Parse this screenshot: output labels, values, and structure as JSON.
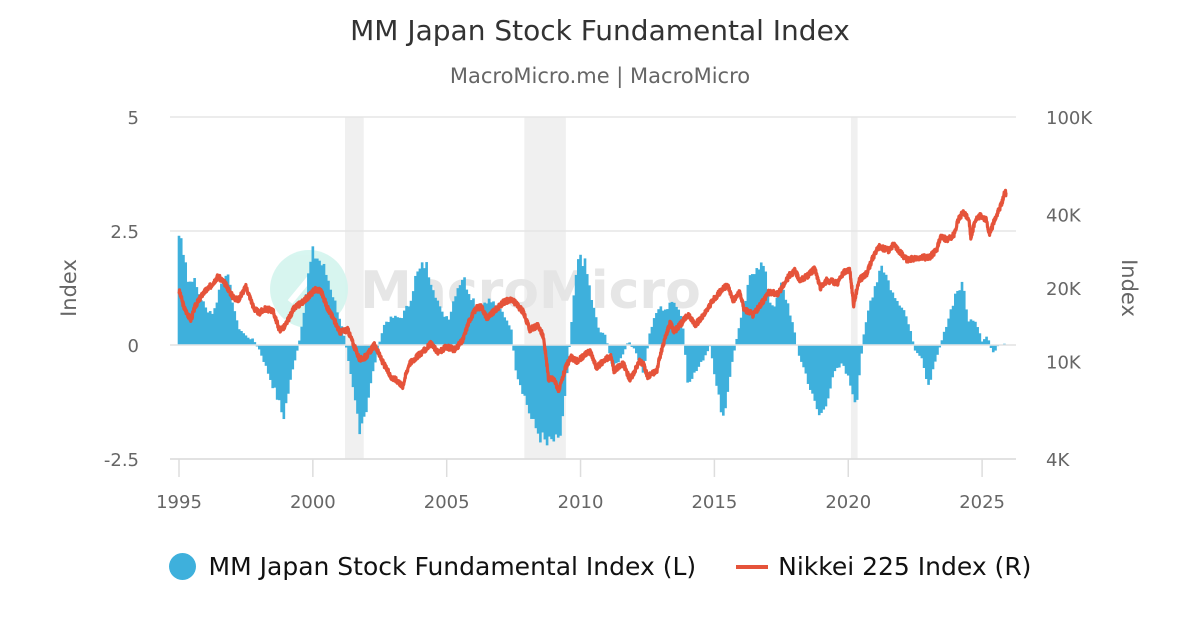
{
  "chart_data": {
    "type": "bar+line",
    "title": "MM Japan Stock Fundamental Index",
    "subtitle": "MacroMicro.me | MacroMicro",
    "watermark": "MacroMicro",
    "x_axis": {
      "range": [
        1994.95,
        2026.2
      ],
      "ticks": [
        1995,
        2000,
        2005,
        2010,
        2015,
        2020,
        2025
      ],
      "tick_labels": [
        "1995",
        "2000",
        "2005",
        "2010",
        "2015",
        "2020",
        "2025"
      ]
    },
    "y_left": {
      "label": "Index",
      "range": [
        -2.5,
        5
      ],
      "ticks": [
        -2.5,
        0,
        2.5,
        5
      ],
      "tick_labels": [
        "-2.5",
        "0",
        "2.5",
        "5"
      ]
    },
    "y_right": {
      "label": "Index",
      "scale": "log",
      "range": [
        4000,
        100000
      ],
      "ticks": [
        4000,
        10000,
        20000,
        40000,
        100000
      ],
      "tick_labels": [
        "4K",
        "10K",
        "20K",
        "40K",
        "100K"
      ]
    },
    "grid": true,
    "legend_position": "bottom-center",
    "recession_bands": [
      [
        2001.2,
        2001.9
      ],
      [
        2007.9,
        2009.45
      ],
      [
        2020.1,
        2020.35
      ]
    ],
    "series": [
      {
        "name": "MM Japan Stock Fundamental Index (L)",
        "type": "bar",
        "axis": "left",
        "color": "#3eb0dc",
        "frequency": "monthly (interpolated anchors)",
        "points": [
          [
            1995.0,
            2.4
          ],
          [
            1995.1,
            2.3
          ],
          [
            1995.25,
            1.9
          ],
          [
            1995.35,
            1.3
          ],
          [
            1995.5,
            1.5
          ],
          [
            1995.7,
            1.2
          ],
          [
            1995.85,
            1.0
          ],
          [
            1996.0,
            0.8
          ],
          [
            1996.3,
            0.7
          ],
          [
            1996.5,
            1.2
          ],
          [
            1996.75,
            1.65
          ],
          [
            1997.0,
            1.0
          ],
          [
            1997.2,
            0.4
          ],
          [
            1997.5,
            0.2
          ],
          [
            1997.8,
            0.1
          ],
          [
            1998.0,
            -0.1
          ],
          [
            1998.2,
            -0.4
          ],
          [
            1998.45,
            -0.8
          ],
          [
            1998.7,
            -1.2
          ],
          [
            1998.9,
            -1.6
          ],
          [
            1999.1,
            -1.0
          ],
          [
            1999.3,
            -0.4
          ],
          [
            1999.5,
            0.1
          ],
          [
            1999.7,
            0.9
          ],
          [
            1999.85,
            1.6
          ],
          [
            2000.0,
            2.0
          ],
          [
            2000.2,
            1.9
          ],
          [
            2000.4,
            1.7
          ],
          [
            2000.6,
            1.4
          ],
          [
            2000.8,
            1.0
          ],
          [
            2001.0,
            0.6
          ],
          [
            2001.2,
            0.1
          ],
          [
            2001.45,
            -0.8
          ],
          [
            2001.75,
            -1.8
          ],
          [
            2002.0,
            -1.4
          ],
          [
            2002.25,
            -0.6
          ],
          [
            2002.5,
            0.1
          ],
          [
            2002.7,
            0.5
          ],
          [
            2003.0,
            0.6
          ],
          [
            2003.3,
            0.6
          ],
          [
            2003.6,
            0.9
          ],
          [
            2003.85,
            1.5
          ],
          [
            2004.2,
            1.8
          ],
          [
            2004.5,
            1.3
          ],
          [
            2004.8,
            0.7
          ],
          [
            2005.1,
            0.6
          ],
          [
            2005.35,
            1.2
          ],
          [
            2005.6,
            1.5
          ],
          [
            2005.9,
            1.1
          ],
          [
            2006.2,
            0.8
          ],
          [
            2006.5,
            1.0
          ],
          [
            2006.8,
            0.9
          ],
          [
            2007.1,
            0.7
          ],
          [
            2007.4,
            0.4
          ],
          [
            2007.6,
            -0.6
          ],
          [
            2007.9,
            -1.1
          ],
          [
            2008.2,
            -1.7
          ],
          [
            2008.5,
            -2.0
          ],
          [
            2008.75,
            -2.2
          ],
          [
            2009.0,
            -2.1
          ],
          [
            2009.2,
            -2.2
          ],
          [
            2009.45,
            -1.0
          ],
          [
            2009.65,
            0.4
          ],
          [
            2009.85,
            1.6
          ],
          [
            2010.0,
            2.0
          ],
          [
            2010.2,
            1.7
          ],
          [
            2010.45,
            0.9
          ],
          [
            2010.7,
            0.3
          ],
          [
            2010.95,
            0.2
          ],
          [
            2011.2,
            -0.5
          ],
          [
            2011.5,
            -0.3
          ],
          [
            2011.8,
            0.1
          ],
          [
            2012.1,
            -0.2
          ],
          [
            2012.35,
            -0.6
          ],
          [
            2012.6,
            0.3
          ],
          [
            2012.9,
            0.8
          ],
          [
            2013.25,
            0.8
          ],
          [
            2013.5,
            1.0
          ],
          [
            2013.8,
            0.6
          ],
          [
            2014.0,
            -0.8
          ],
          [
            2014.3,
            -0.6
          ],
          [
            2014.6,
            -0.3
          ],
          [
            2014.85,
            0.0
          ],
          [
            2015.1,
            -1.0
          ],
          [
            2015.35,
            -1.6
          ],
          [
            2015.6,
            -0.6
          ],
          [
            2015.85,
            0.2
          ],
          [
            2016.1,
            0.8
          ],
          [
            2016.35,
            1.5
          ],
          [
            2016.6,
            1.8
          ],
          [
            2016.85,
            1.7
          ],
          [
            2017.1,
            0.9
          ],
          [
            2017.3,
            0.9
          ],
          [
            2017.5,
            1.3
          ],
          [
            2017.75,
            0.9
          ],
          [
            2017.95,
            0.4
          ],
          [
            2018.15,
            -0.2
          ],
          [
            2018.4,
            -0.6
          ],
          [
            2018.7,
            -1.2
          ],
          [
            2018.95,
            -1.6
          ],
          [
            2019.2,
            -1.2
          ],
          [
            2019.5,
            -0.6
          ],
          [
            2019.8,
            -0.4
          ],
          [
            2020.05,
            -0.8
          ],
          [
            2020.3,
            -1.3
          ],
          [
            2020.55,
            0.1
          ],
          [
            2020.8,
            0.9
          ],
          [
            2021.0,
            1.3
          ],
          [
            2021.25,
            1.8
          ],
          [
            2021.5,
            1.4
          ],
          [
            2021.75,
            1.0
          ],
          [
            2022.0,
            0.9
          ],
          [
            2022.25,
            0.5
          ],
          [
            2022.5,
            -0.1
          ],
          [
            2022.75,
            -0.3
          ],
          [
            2022.95,
            -0.9
          ],
          [
            2023.15,
            -0.6
          ],
          [
            2023.4,
            -0.1
          ],
          [
            2023.6,
            0.3
          ],
          [
            2023.85,
            0.8
          ],
          [
            2024.05,
            1.2
          ],
          [
            2024.3,
            1.3
          ],
          [
            2024.5,
            0.5
          ],
          [
            2024.7,
            0.6
          ],
          [
            2024.85,
            0.4
          ],
          [
            2025.0,
            0.1
          ],
          [
            2025.2,
            0.2
          ],
          [
            2025.4,
            -0.2
          ],
          [
            2025.6,
            0.0
          ],
          [
            2025.85,
            0.05
          ]
        ]
      },
      {
        "name": "Nikkei 225 Index (R)",
        "type": "line",
        "axis": "right",
        "color": "#e5533a",
        "frequency": "daily (approximated by anchors)",
        "points": [
          [
            1995.0,
            19500
          ],
          [
            1995.2,
            16500
          ],
          [
            1995.45,
            14800
          ],
          [
            1995.6,
            16800
          ],
          [
            1995.9,
            19000
          ],
          [
            1996.2,
            20500
          ],
          [
            1996.45,
            22300
          ],
          [
            1996.7,
            21000
          ],
          [
            1997.0,
            18500
          ],
          [
            1997.2,
            17800
          ],
          [
            1997.5,
            20200
          ],
          [
            1997.8,
            16500
          ],
          [
            1998.0,
            15800
          ],
          [
            1998.2,
            16400
          ],
          [
            1998.5,
            16200
          ],
          [
            1998.75,
            13500
          ],
          [
            1998.95,
            13900
          ],
          [
            1999.3,
            16500
          ],
          [
            1999.6,
            17500
          ],
          [
            1999.85,
            18500
          ],
          [
            2000.1,
            19800
          ],
          [
            2000.3,
            19500
          ],
          [
            2000.55,
            16500
          ],
          [
            2000.8,
            14800
          ],
          [
            2001.0,
            13200
          ],
          [
            2001.3,
            13500
          ],
          [
            2001.55,
            11500
          ],
          [
            2001.75,
            10200
          ],
          [
            2002.0,
            10500
          ],
          [
            2002.3,
            11700
          ],
          [
            2002.6,
            10000
          ],
          [
            2002.9,
            8700
          ],
          [
            2003.2,
            8300
          ],
          [
            2003.35,
            7900
          ],
          [
            2003.6,
            9800
          ],
          [
            2003.9,
            10500
          ],
          [
            2004.2,
            11200
          ],
          [
            2004.4,
            11800
          ],
          [
            2004.7,
            10900
          ],
          [
            2005.0,
            11500
          ],
          [
            2005.3,
            11200
          ],
          [
            2005.6,
            12200
          ],
          [
            2005.85,
            14800
          ],
          [
            2006.1,
            16500
          ],
          [
            2006.3,
            16800
          ],
          [
            2006.5,
            15000
          ],
          [
            2006.8,
            16200
          ],
          [
            2007.1,
            17400
          ],
          [
            2007.4,
            18000
          ],
          [
            2007.6,
            17200
          ],
          [
            2007.85,
            16000
          ],
          [
            2008.1,
            13500
          ],
          [
            2008.4,
            14000
          ],
          [
            2008.6,
            12800
          ],
          [
            2008.8,
            8500
          ],
          [
            2009.0,
            8500
          ],
          [
            2009.2,
            7600
          ],
          [
            2009.45,
            9500
          ],
          [
            2009.65,
            10400
          ],
          [
            2009.9,
            10000
          ],
          [
            2010.2,
            10800
          ],
          [
            2010.35,
            11000
          ],
          [
            2010.6,
            9400
          ],
          [
            2010.9,
            10200
          ],
          [
            2011.15,
            10500
          ],
          [
            2011.25,
            9200
          ],
          [
            2011.6,
            9800
          ],
          [
            2011.85,
            8400
          ],
          [
            2012.2,
            10000
          ],
          [
            2012.35,
            9800
          ],
          [
            2012.5,
            8700
          ],
          [
            2012.85,
            9200
          ],
          [
            2013.0,
            10800
          ],
          [
            2013.35,
            14500
          ],
          [
            2013.5,
            13200
          ],
          [
            2013.8,
            14500
          ],
          [
            2014.0,
            15500
          ],
          [
            2014.3,
            14200
          ],
          [
            2014.6,
            15400
          ],
          [
            2014.9,
            17500
          ],
          [
            2015.3,
            19800
          ],
          [
            2015.5,
            20500
          ],
          [
            2015.7,
            17800
          ],
          [
            2015.95,
            19200
          ],
          [
            2016.1,
            16500
          ],
          [
            2016.45,
            15500
          ],
          [
            2016.8,
            17500
          ],
          [
            2017.0,
            19200
          ],
          [
            2017.4,
            19000
          ],
          [
            2017.8,
            22500
          ],
          [
            2018.0,
            23500
          ],
          [
            2018.2,
            21500
          ],
          [
            2018.5,
            22500
          ],
          [
            2018.75,
            24000
          ],
          [
            2018.95,
            20000
          ],
          [
            2019.2,
            21500
          ],
          [
            2019.6,
            21000
          ],
          [
            2019.85,
            23300
          ],
          [
            2020.05,
            23800
          ],
          [
            2020.2,
            17000
          ],
          [
            2020.4,
            21500
          ],
          [
            2020.7,
            23000
          ],
          [
            2020.95,
            27000
          ],
          [
            2021.15,
            29500
          ],
          [
            2021.5,
            28500
          ],
          [
            2021.7,
            30000
          ],
          [
            2022.0,
            27500
          ],
          [
            2022.2,
            26000
          ],
          [
            2022.5,
            26500
          ],
          [
            2022.75,
            26800
          ],
          [
            2023.0,
            26500
          ],
          [
            2023.3,
            28500
          ],
          [
            2023.45,
            32500
          ],
          [
            2023.7,
            31500
          ],
          [
            2023.95,
            33000
          ],
          [
            2024.15,
            39000
          ],
          [
            2024.3,
            40500
          ],
          [
            2024.5,
            38500
          ],
          [
            2024.58,
            32000
          ],
          [
            2024.75,
            38000
          ],
          [
            2024.95,
            39500
          ],
          [
            2025.15,
            38000
          ],
          [
            2025.28,
            33000
          ],
          [
            2025.45,
            37500
          ],
          [
            2025.6,
            41000
          ],
          [
            2025.75,
            45000
          ],
          [
            2025.85,
            49500
          ],
          [
            2025.9,
            48500
          ]
        ]
      }
    ]
  },
  "legend": {
    "items": [
      {
        "label": "MM Japan Stock Fundamental Index (L)",
        "color": "#3eb0dc",
        "marker": "circle"
      },
      {
        "label": "Nikkei 225 Index (R)",
        "color": "#e5533a",
        "marker": "line"
      }
    ]
  }
}
